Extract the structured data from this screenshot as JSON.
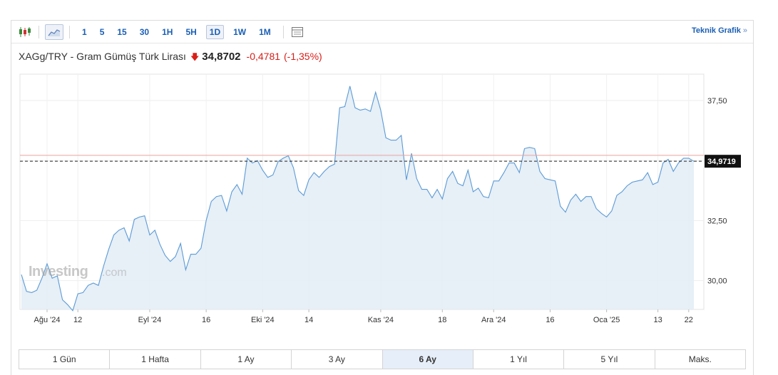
{
  "toolbar": {
    "icons": [
      "candlestick-icon",
      "area-chart-icon",
      "table-icon"
    ],
    "intervals": [
      "1",
      "5",
      "15",
      "30",
      "1H",
      "5H",
      "1D",
      "1W",
      "1M"
    ],
    "active_interval": "1D",
    "technical_link": "Teknik Grafik",
    "technical_chevron": "»"
  },
  "header": {
    "symbol": "XAGg/TRY - Gram Gümüş Türk Lirası",
    "direction_icon": "down-arrow-icon",
    "price": "34,8702",
    "change": "-0,4781",
    "change_pct": "(-1,35%)"
  },
  "watermark": {
    "brand": "Investing",
    "suffix": ".com"
  },
  "ranges": [
    "1 Gün",
    "1 Hafta",
    "1 Ay",
    "3 Ay",
    "6 Ay",
    "1 Yıl",
    "5 Yıl",
    "Maks."
  ],
  "active_range": "6 Ay",
  "colors": {
    "line": "#5b9bd5",
    "area": "#e3ecf6",
    "ref_line": "#e8a39e",
    "accent": "#1a5fb4",
    "negative": "#d91e18"
  },
  "chart_data": {
    "type": "area",
    "ylim": [
      28.8,
      38.6
    ],
    "yticks": [
      30.0,
      32.5,
      35.0,
      37.5
    ],
    "ytick_labels": [
      "30,00",
      "32,50",
      "",
      "37,50"
    ],
    "xticks": [
      {
        "label": "Ağu '24",
        "index": 5
      },
      {
        "label": "12",
        "index": 11
      },
      {
        "label": "Eyl '24",
        "index": 25
      },
      {
        "label": "16",
        "index": 36
      },
      {
        "label": "Eki '24",
        "index": 47
      },
      {
        "label": "14",
        "index": 56
      },
      {
        "label": "Kas '24",
        "index": 70
      },
      {
        "label": "18",
        "index": 82
      },
      {
        "label": "Ara '24",
        "index": 92
      },
      {
        "label": "16",
        "index": 103
      },
      {
        "label": "Oca '25",
        "index": 114
      },
      {
        "label": "13",
        "index": 124
      },
      {
        "label": "22",
        "index": 130
      }
    ],
    "last_value_label": "34,9719",
    "last_value": 34.9719,
    "reference_value": 35.22,
    "grid": true,
    "values": [
      30.25,
      29.55,
      29.5,
      29.6,
      30.1,
      30.7,
      30.1,
      30.2,
      29.2,
      29.0,
      28.75,
      29.45,
      29.5,
      29.8,
      29.9,
      29.8,
      30.6,
      31.3,
      31.9,
      32.1,
      32.2,
      31.65,
      32.55,
      32.65,
      32.7,
      31.9,
      32.1,
      31.5,
      31.05,
      30.8,
      31.0,
      31.55,
      30.45,
      31.1,
      31.1,
      31.35,
      32.5,
      33.3,
      33.5,
      33.55,
      32.9,
      33.7,
      34.0,
      33.6,
      35.1,
      34.9,
      35.0,
      34.6,
      34.3,
      34.4,
      34.95,
      35.1,
      35.2,
      34.7,
      33.75,
      33.55,
      34.2,
      34.5,
      34.3,
      34.55,
      34.75,
      34.85,
      37.2,
      37.25,
      38.1,
      37.2,
      37.1,
      37.15,
      37.05,
      37.85,
      37.1,
      35.95,
      35.85,
      35.85,
      36.05,
      34.2,
      35.3,
      34.25,
      33.8,
      33.8,
      33.45,
      33.8,
      33.4,
      34.25,
      34.55,
      34.05,
      33.95,
      34.6,
      33.7,
      33.85,
      33.5,
      33.45,
      34.15,
      34.15,
      34.5,
      34.9,
      34.9,
      34.5,
      35.5,
      35.55,
      35.5,
      34.55,
      34.25,
      34.2,
      34.15,
      33.1,
      32.85,
      33.35,
      33.6,
      33.3,
      33.5,
      33.5,
      33.0,
      32.8,
      32.65,
      32.9,
      33.55,
      33.7,
      33.95,
      34.1,
      34.15,
      34.2,
      34.5,
      34.0,
      34.1,
      34.9,
      35.05,
      34.55,
      34.9,
      35.1,
      35.1,
      34.97
    ]
  }
}
